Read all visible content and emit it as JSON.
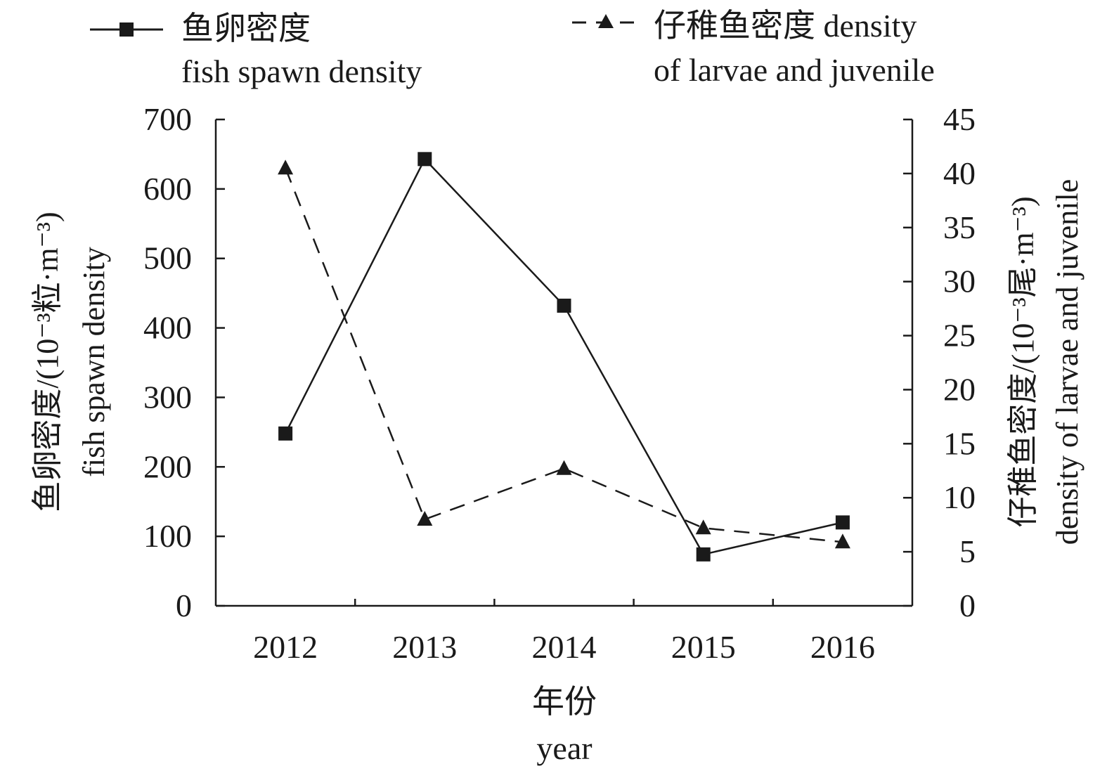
{
  "chart_data": {
    "type": "line",
    "categories": [
      "2012",
      "2013",
      "2014",
      "2015",
      "2016"
    ],
    "xlabel_cn": "年份",
    "xlabel_en": "year",
    "y_left": {
      "label_cn": "鱼卵密度/(10⁻³粒·m⁻³)",
      "label_en": "fish spawn density",
      "ylim": [
        0,
        700
      ],
      "ticks": [
        0,
        100,
        200,
        300,
        400,
        500,
        600,
        700
      ]
    },
    "y_right": {
      "label_cn": "仔稚鱼密度/(10⁻³尾·m⁻³)",
      "label_en": "density of larvae and juvenile",
      "ylim": [
        0,
        45
      ],
      "ticks": [
        0,
        5,
        10,
        15,
        20,
        25,
        30,
        35,
        40,
        45
      ]
    },
    "series": [
      {
        "name_cn": "鱼卵密度",
        "name_en": "fish spawn density",
        "axis": "left",
        "marker": "square",
        "line": "solid",
        "color": "#1a1a1a",
        "values": [
          248,
          643,
          432,
          74,
          120
        ]
      },
      {
        "name_cn": "仔稚鱼密度 density",
        "name_en": "of larvae and juvenile",
        "axis": "right",
        "marker": "triangle",
        "line": "dashed",
        "color": "#1a1a1a",
        "values": [
          40.5,
          8.0,
          12.7,
          7.2,
          5.9
        ]
      }
    ],
    "grid": false,
    "legend_position": "top"
  }
}
